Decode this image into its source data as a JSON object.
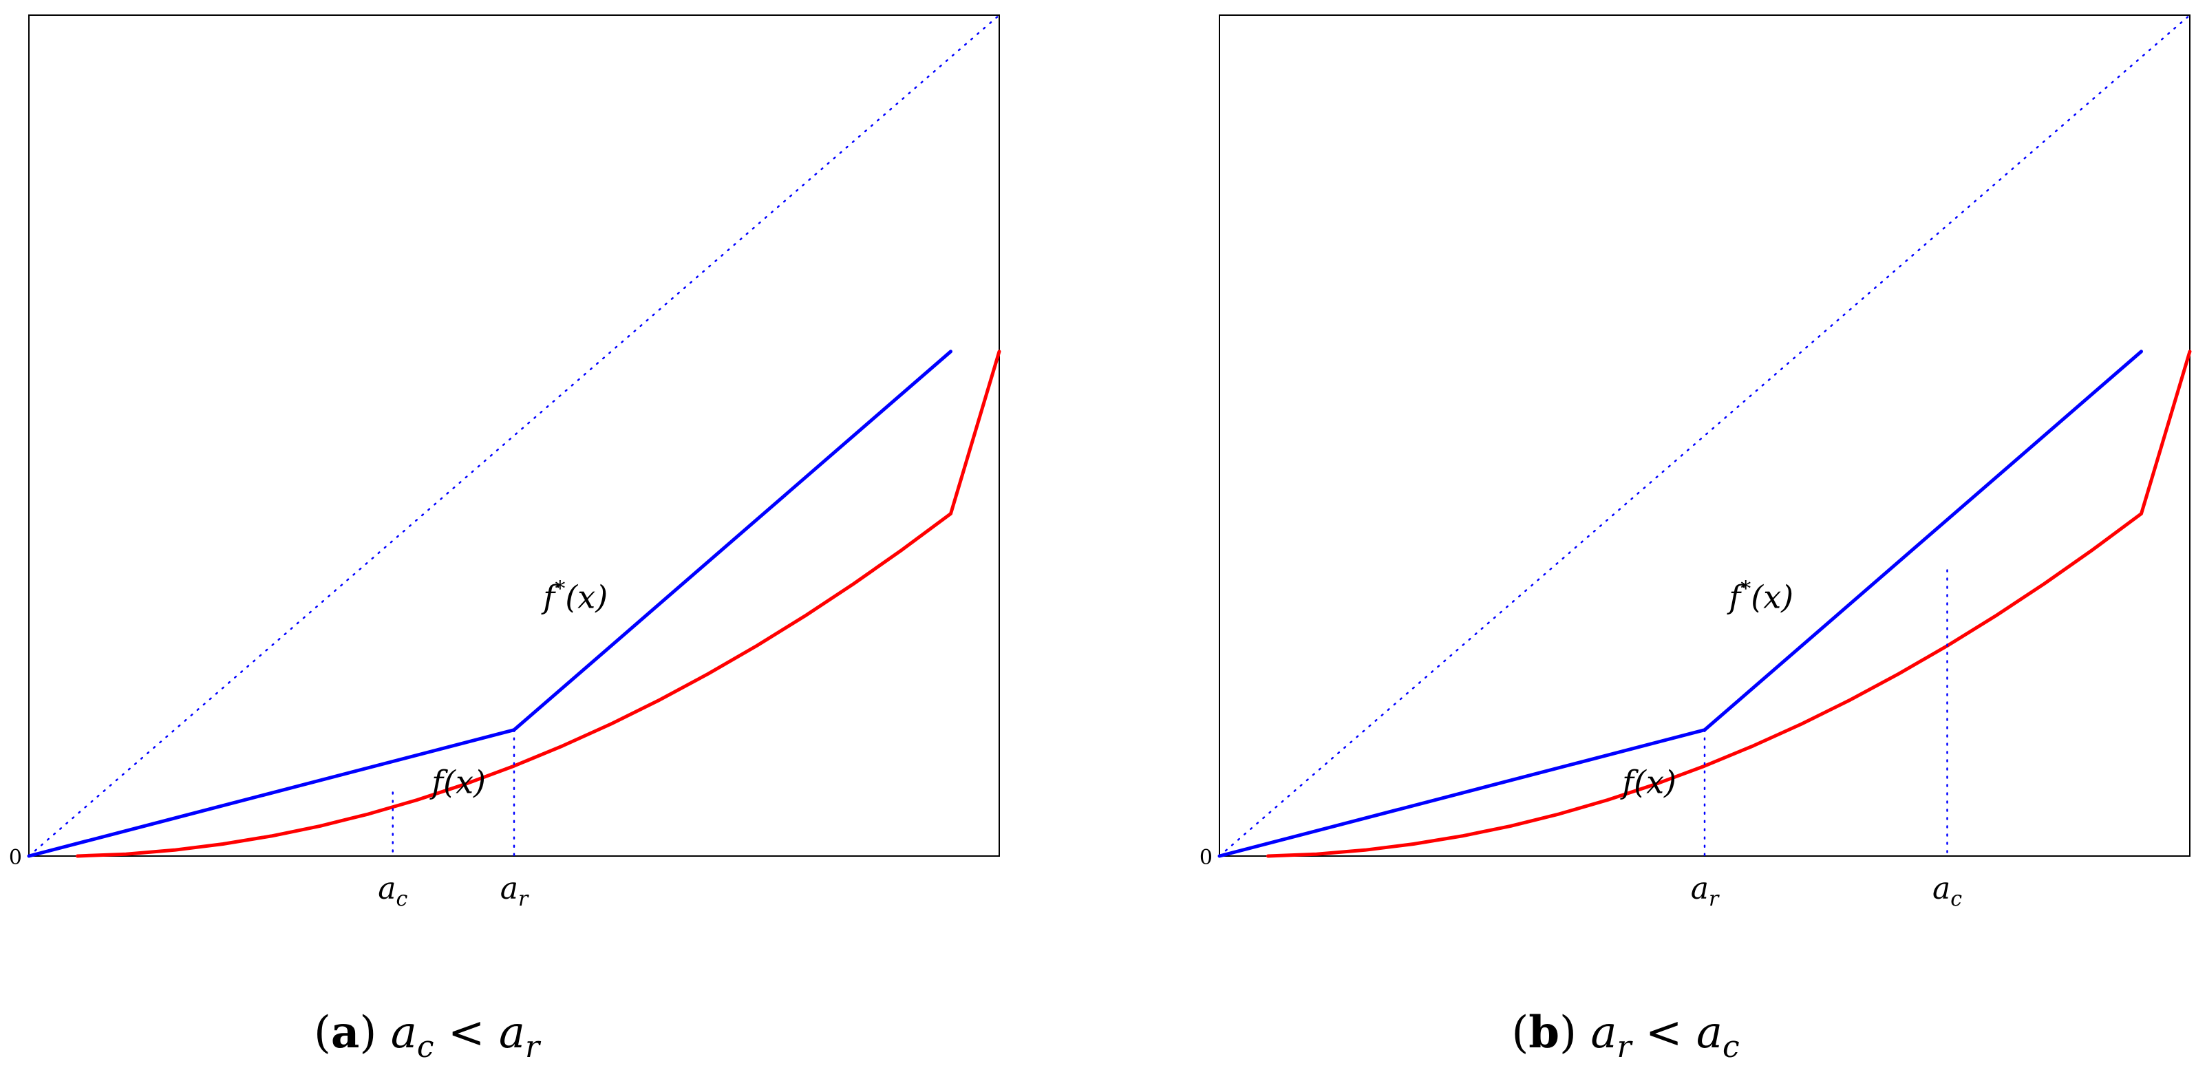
{
  "chart_data": [
    {
      "type": "line",
      "caption": {
        "letter": "a",
        "lhs_base": "a",
        "lhs_sub": "c",
        "op": "<",
        "rhs_base": "a",
        "rhs_sub": "r"
      },
      "origin_label": "0",
      "xlim": [
        0,
        1
      ],
      "ylim": [
        0,
        1
      ],
      "grid": false,
      "axes_box": true,
      "series": [
        {
          "color": "#0000ff",
          "style": "dotted",
          "x": [
            0,
            1
          ],
          "y": [
            0,
            1
          ]
        },
        {
          "label_base": "f",
          "label_sup": "*",
          "label_args": "(x)",
          "color": "#0000ff",
          "style": "solid",
          "x": [
            0,
            0.5,
            0.95
          ],
          "y": [
            0,
            0.15,
            0.6
          ]
        },
        {
          "label_base": "f",
          "label_args": "(x)",
          "color": "#ff0000",
          "style": "solid",
          "x": [
            0.05,
            0.1,
            0.15,
            0.2,
            0.25,
            0.3,
            0.35,
            0.4,
            0.45,
            0.5,
            0.55,
            0.6,
            0.65,
            0.7,
            0.75,
            0.8,
            0.85,
            0.9,
            0.95,
            1.0
          ],
          "y": [
            0.0,
            0.0023,
            0.0071,
            0.0143,
            0.0238,
            0.0357,
            0.05,
            0.0667,
            0.0857,
            0.1071,
            0.131,
            0.1571,
            0.1857,
            0.2167,
            0.25,
            0.2857,
            0.3238,
            0.3643,
            0.4071,
            0.6
          ]
        }
      ],
      "marks": [
        {
          "base": "a",
          "sub": "c",
          "x": 0.375,
          "y": 0.0757
        },
        {
          "base": "a",
          "sub": "r",
          "x": 0.5,
          "y": 0.15
        }
      ],
      "annotations": [
        {
          "text_base": "f",
          "text_sup": "*",
          "text_args": "(x)",
          "x": 0.53,
          "y": 0.295
        },
        {
          "text_base": "f",
          "text_args": "(x)",
          "x": 0.415,
          "y": 0.075
        }
      ]
    },
    {
      "type": "line",
      "caption": {
        "letter": "b",
        "lhs_base": "a",
        "lhs_sub": "r",
        "op": "<",
        "rhs_base": "a",
        "rhs_sub": "c"
      },
      "origin_label": "0",
      "xlim": [
        0,
        1
      ],
      "ylim": [
        0,
        1
      ],
      "grid": false,
      "axes_box": true,
      "series": [
        {
          "color": "#0000ff",
          "style": "dotted",
          "x": [
            0,
            1
          ],
          "y": [
            0,
            1
          ]
        },
        {
          "label_base": "f",
          "label_sup": "*",
          "label_args": "(x)",
          "color": "#0000ff",
          "style": "solid",
          "x": [
            0,
            0.5,
            0.95
          ],
          "y": [
            0,
            0.15,
            0.6
          ]
        },
        {
          "label_base": "f",
          "label_args": "(x)",
          "color": "#ff0000",
          "style": "solid",
          "x": [
            0.05,
            0.1,
            0.15,
            0.2,
            0.25,
            0.3,
            0.35,
            0.4,
            0.45,
            0.5,
            0.55,
            0.6,
            0.65,
            0.7,
            0.75,
            0.8,
            0.85,
            0.9,
            0.95,
            1.0
          ],
          "y": [
            0.0,
            0.0023,
            0.0071,
            0.0143,
            0.0238,
            0.0357,
            0.05,
            0.0667,
            0.0857,
            0.1071,
            0.131,
            0.1571,
            0.1857,
            0.2167,
            0.25,
            0.2857,
            0.3238,
            0.3643,
            0.4071,
            0.6
          ]
        }
      ],
      "marks": [
        {
          "base": "a",
          "sub": "r",
          "x": 0.5,
          "y": 0.15
        },
        {
          "base": "a",
          "sub": "c",
          "x": 0.75,
          "y": 0.34
        }
      ],
      "annotations": [
        {
          "text_base": "f",
          "text_sup": "*",
          "text_args": "(x)",
          "x": 0.525,
          "y": 0.295
        },
        {
          "text_base": "f",
          "text_args": "(x)",
          "x": 0.415,
          "y": 0.075
        }
      ]
    }
  ]
}
